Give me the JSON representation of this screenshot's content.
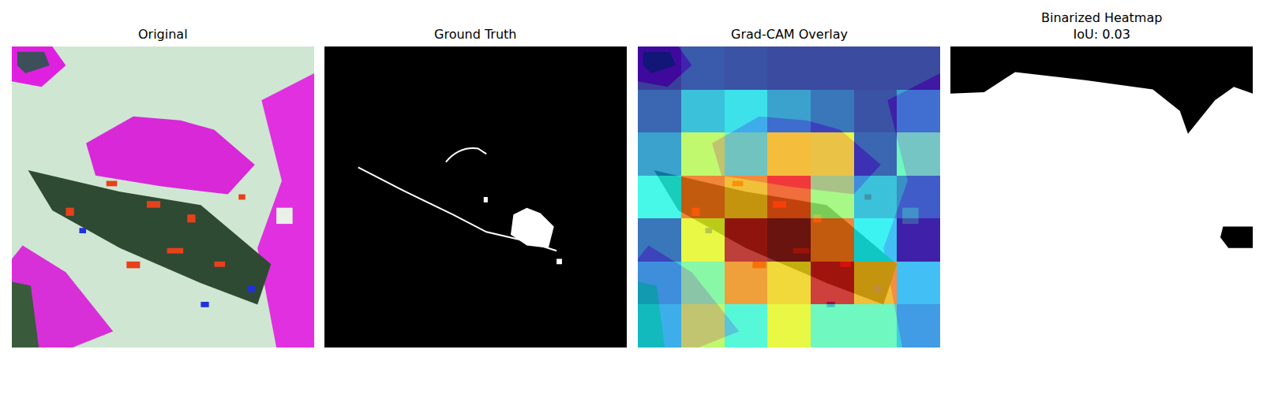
{
  "chart_data": [
    {
      "type": "image",
      "title": "Original",
      "tick_labels": false
    },
    {
      "type": "image",
      "title": "Ground Truth",
      "tick_labels": false
    },
    {
      "type": "heatmap",
      "title": "Grad-CAM Overlay",
      "tick_labels": false,
      "cells": [
        [
          0.05,
          0.12,
          0.1,
          0.08,
          0.08,
          0.08,
          0.08
        ],
        [
          0.15,
          0.3,
          0.35,
          0.25,
          0.18,
          0.1,
          0.25
        ],
        [
          0.25,
          0.55,
          0.45,
          0.62,
          0.6,
          0.15,
          0.45
        ],
        [
          0.4,
          0.75,
          0.68,
          0.78,
          0.52,
          0.3,
          0.22
        ],
        [
          0.18,
          0.6,
          0.9,
          0.95,
          0.75,
          0.38,
          0.1
        ],
        [
          0.3,
          0.48,
          0.72,
          0.65,
          0.88,
          0.68,
          0.38
        ],
        [
          0.35,
          0.55,
          0.42,
          0.6,
          0.45,
          0.45,
          0.32
        ]
      ]
    },
    {
      "type": "image",
      "title": "Binarized Heatmap",
      "subtitle": "IoU: 0.03",
      "tick_labels": false
    }
  ]
}
